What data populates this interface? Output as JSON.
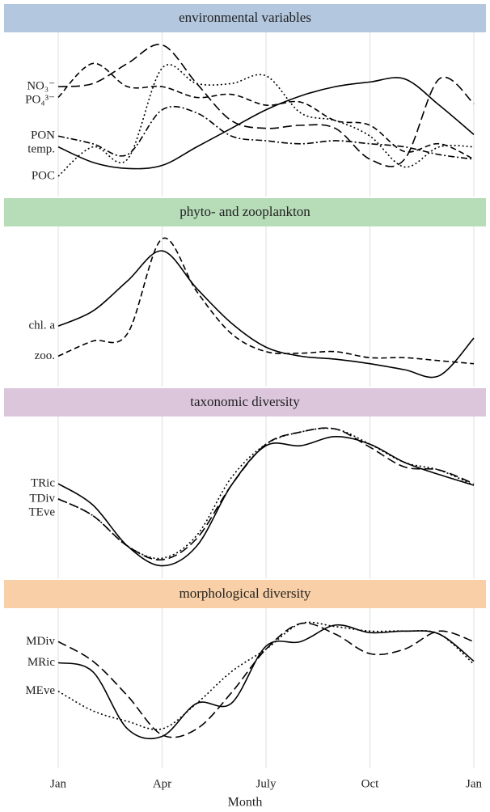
{
  "chart_data": [
    {
      "type": "line",
      "title": "environmental variables",
      "strip_color": "#b3c7de",
      "x": [
        0,
        1,
        2,
        3,
        4,
        5,
        6,
        7,
        8,
        9,
        10,
        11,
        12
      ],
      "xlim": [
        0,
        12
      ],
      "xticks": [
        0,
        3,
        6,
        9,
        12
      ],
      "ylim": [
        0,
        100
      ],
      "grid": true,
      "series": [
        {
          "name": "NO₃⁻",
          "color": "#000",
          "linestyle": "longdash",
          "values": [
            68,
            70,
            83,
            95,
            70,
            46,
            41,
            43,
            41,
            21,
            21,
            73,
            57
          ]
        },
        {
          "name": "PO₄³⁻",
          "color": "#000",
          "linestyle": "dashed",
          "values": [
            61,
            83,
            68,
            68,
            61,
            63,
            56,
            58,
            46,
            43,
            26,
            31,
            21
          ]
        },
        {
          "name": "PON",
          "color": "#000",
          "linestyle": "dashdot",
          "values": [
            36,
            31,
            24,
            53,
            51,
            36,
            33,
            31,
            33,
            31,
            29,
            24,
            21
          ]
        },
        {
          "name": "temp.",
          "color": "#000",
          "linestyle": "solid",
          "values": [
            29,
            19,
            15,
            17,
            29,
            41,
            53,
            62,
            68,
            71,
            73,
            56,
            37
          ]
        },
        {
          "name": "POC",
          "color": "#000",
          "linestyle": "dotted",
          "values": [
            10,
            29,
            21,
            80,
            70,
            70,
            75,
            51,
            46,
            36,
            16,
            29,
            29
          ]
        }
      ]
    },
    {
      "type": "line",
      "title": "phyto- and zooplankton",
      "strip_color": "#b6dcb8",
      "x": [
        0,
        1,
        2,
        3,
        4,
        5,
        6,
        7,
        8,
        9,
        10,
        11,
        12
      ],
      "xlim": [
        0,
        12
      ],
      "xticks": [
        0,
        3,
        6,
        9,
        12
      ],
      "ylim": [
        0,
        100
      ],
      "grid": true,
      "series": [
        {
          "name": "chl. a",
          "color": "#000",
          "linestyle": "solid",
          "values": [
            37,
            47,
            67,
            87,
            62,
            39,
            23,
            17,
            15,
            12,
            8,
            4,
            29
          ]
        },
        {
          "name": "zoo.",
          "color": "#000",
          "linestyle": "dashed",
          "values": [
            17,
            27,
            32,
            95,
            60,
            32,
            20,
            19,
            20,
            16,
            16,
            14,
            12
          ]
        }
      ]
    },
    {
      "type": "line",
      "title": "taxonomic diversity",
      "strip_color": "#dcc6dc",
      "x": [
        0,
        1,
        2,
        3,
        4,
        5,
        6,
        7,
        8,
        9,
        10,
        11,
        12
      ],
      "xlim": [
        0,
        12
      ],
      "xticks": [
        0,
        3,
        6,
        9,
        12
      ],
      "ylim": [
        0,
        100
      ],
      "grid": true,
      "series": [
        {
          "name": "TRic",
          "color": "#000",
          "linestyle": "solid",
          "values": [
            59,
            45,
            18,
            5,
            18,
            58,
            84,
            84,
            90,
            85,
            73,
            65,
            58
          ]
        },
        {
          "name": "TDiv",
          "color": "#000",
          "linestyle": "longdash",
          "values": [
            49,
            38,
            18,
            9,
            23,
            58,
            85,
            93,
            95,
            83,
            70,
            68,
            59
          ]
        },
        {
          "name": "TEve",
          "color": "#000",
          "linestyle": "dotted",
          "values": [
            49,
            38,
            18,
            10,
            25,
            63,
            85,
            93,
            95,
            85,
            73,
            68,
            58
          ]
        }
      ]
    },
    {
      "type": "line",
      "title": "morphological diversity",
      "strip_color": "#f8cfa6",
      "x": [
        0,
        1,
        2,
        3,
        4,
        5,
        6,
        7,
        8,
        9,
        10,
        11,
        12
      ],
      "xlim": [
        0,
        12
      ],
      "xticks": [
        {
          "value": 0,
          "label": "Jan"
        },
        {
          "value": 3,
          "label": "Apr"
        },
        {
          "value": 6,
          "label": "July"
        },
        {
          "value": 9,
          "label": "Oct"
        },
        {
          "value": 12,
          "label": "Jan"
        }
      ],
      "xlabel": "Month",
      "ylim": [
        0,
        100
      ],
      "grid": true,
      "series": [
        {
          "name": "MDiv",
          "color": "#000",
          "linestyle": "longdash",
          "values": [
            81,
            68,
            45,
            19,
            23,
            47,
            76,
            93,
            86,
            73,
            76,
            88,
            81
          ]
        },
        {
          "name": "MRic",
          "color": "#000",
          "linestyle": "solid",
          "values": [
            67,
            61,
            23,
            18,
            40,
            40,
            78,
            81,
            92,
            87,
            88,
            86,
            68
          ]
        },
        {
          "name": "MEve",
          "color": "#000",
          "linestyle": "dotted",
          "values": [
            48,
            35,
            28,
            23,
            40,
            61,
            76,
            93,
            91,
            88,
            88,
            86,
            66
          ]
        }
      ]
    }
  ]
}
